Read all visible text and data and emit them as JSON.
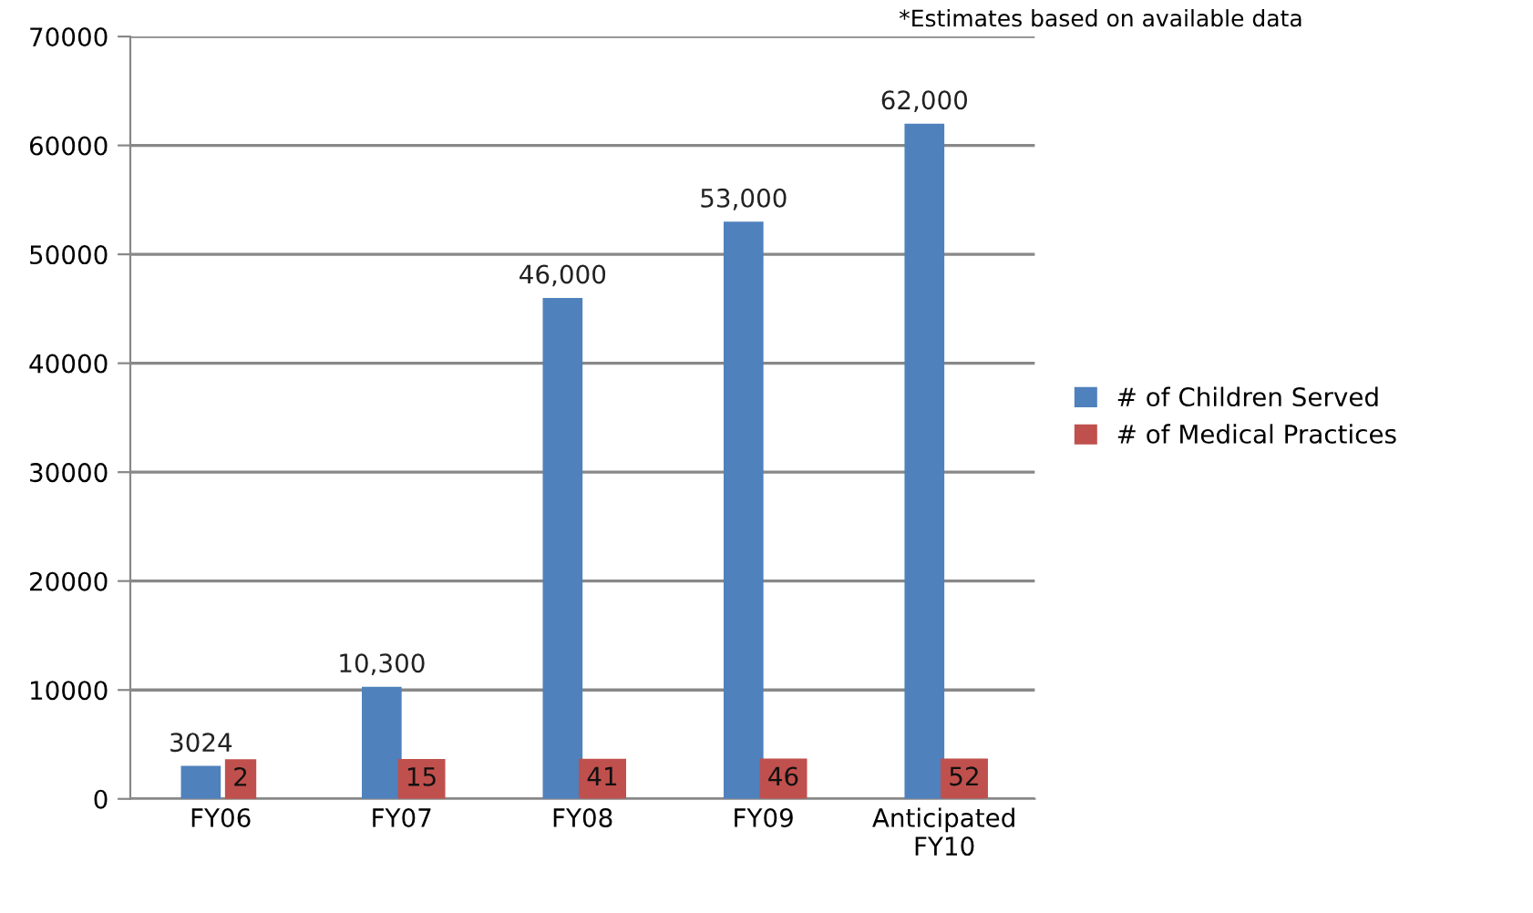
{
  "chart_data": {
    "type": "bar",
    "categories": [
      "FY06",
      "FY07",
      "FY08",
      "FY09",
      "Anticipated\nFY10"
    ],
    "series": [
      {
        "name": "# of Children Served",
        "color": "#4f81bd",
        "values": [
          3024,
          10300,
          46000,
          53000,
          62000
        ],
        "value_labels": [
          "3024",
          "10,300",
          "46,000",
          "53,000",
          "62,000"
        ]
      },
      {
        "name": "# of Medical Practices",
        "color": "#c0504d",
        "values": [
          2,
          15,
          41,
          46,
          52
        ],
        "value_labels": [
          "2",
          "15",
          "41",
          "46",
          "52"
        ]
      }
    ],
    "ylim": [
      0,
      70000
    ],
    "yticks": [
      0,
      10000,
      20000,
      30000,
      40000,
      50000,
      60000,
      70000
    ],
    "grid": "y",
    "legend": "right",
    "annotations": [
      "*Estimates based on available data"
    ]
  }
}
